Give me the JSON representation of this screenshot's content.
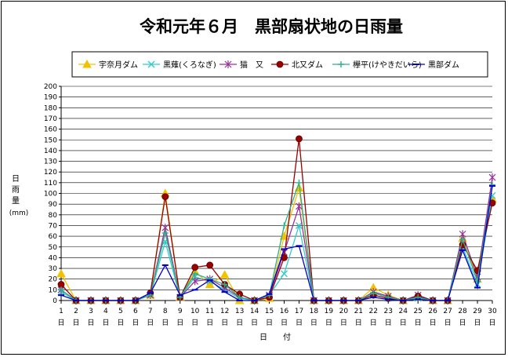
{
  "chart_data": {
    "type": "line",
    "title": "令和元年６月　黒部扇状地の日雨量",
    "ylabel_chars": [
      "日",
      "雨",
      "量"
    ],
    "yunit": "(mm)",
    "xlabel": "日　　付",
    "xlabel_suffix": "日",
    "ylim": [
      0,
      200
    ],
    "ytick_step": 10,
    "grid": true,
    "legend_position": "top",
    "x": [
      1,
      2,
      3,
      4,
      5,
      6,
      7,
      8,
      9,
      10,
      11,
      12,
      13,
      14,
      15,
      16,
      17,
      18,
      19,
      20,
      21,
      22,
      23,
      24,
      25,
      26,
      27,
      28,
      29,
      30
    ],
    "series": [
      {
        "name": "宇奈月ダム",
        "color": "#f2c200",
        "marker": "triangle",
        "values": [
          25,
          0,
          0,
          0,
          0,
          0,
          5,
          100,
          3,
          27,
          15,
          24,
          0,
          0,
          2,
          60,
          105,
          0,
          0,
          0,
          0,
          12,
          5,
          0,
          3,
          0,
          0,
          58,
          20,
          95
        ]
      },
      {
        "name": "黒薙(くろなぎ)",
        "color": "#33cccc",
        "marker": "x",
        "values": [
          8,
          0,
          0,
          0,
          0,
          0,
          5,
          55,
          3,
          22,
          18,
          10,
          2,
          0,
          5,
          25,
          70,
          0,
          0,
          0,
          0,
          5,
          2,
          0,
          2,
          0,
          0,
          50,
          15,
          98
        ]
      },
      {
        "name": "猫　又",
        "color": "#993399",
        "marker": "star",
        "values": [
          10,
          0,
          0,
          0,
          0,
          0,
          5,
          68,
          3,
          18,
          20,
          12,
          3,
          0,
          5,
          45,
          88,
          0,
          0,
          0,
          0,
          8,
          4,
          0,
          5,
          0,
          0,
          62,
          22,
          115
        ]
      },
      {
        "name": "北又ダム",
        "color": "#990000",
        "marker": "circle",
        "values": [
          15,
          0,
          0,
          0,
          0,
          0,
          7,
          97,
          3,
          31,
          33,
          15,
          6,
          0,
          3,
          40,
          151,
          0,
          0,
          0,
          0,
          5,
          2,
          0,
          4,
          0,
          0,
          52,
          28,
          91
        ]
      },
      {
        "name": "欅平(けやきだいら)",
        "color": "#2eae8a",
        "marker": "plus",
        "values": [
          10,
          0,
          0,
          0,
          0,
          0,
          5,
          63,
          3,
          25,
          20,
          15,
          3,
          0,
          5,
          70,
          110,
          0,
          0,
          0,
          0,
          7,
          3,
          0,
          3,
          0,
          0,
          57,
          18,
          108
        ]
      },
      {
        "name": "黒部ダム",
        "color": "#0000cc",
        "marker": "dash",
        "values": [
          5,
          0,
          0,
          0,
          0,
          0,
          7,
          33,
          5,
          10,
          19,
          8,
          0,
          0,
          6,
          48,
          51,
          0,
          0,
          0,
          0,
          3,
          1,
          0,
          1,
          0,
          0,
          47,
          12,
          107
        ]
      }
    ]
  }
}
